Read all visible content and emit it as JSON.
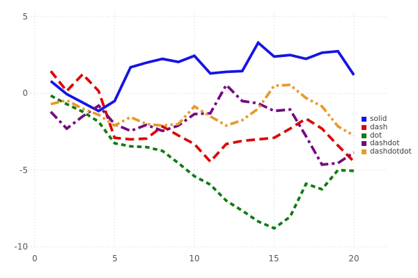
{
  "chart_data": {
    "type": "line",
    "title": "",
    "xlabel": "",
    "ylabel": "",
    "grid": true,
    "grid_style": "dotted",
    "grid_color": "#d9d9e0",
    "background": "#ffffff",
    "tick_label_color": "#55555f",
    "legend_position": "right-middle",
    "xlim": [
      0,
      20.5
    ],
    "ylim": [
      -10,
      5
    ],
    "x_ticks": [
      0,
      5,
      10,
      15,
      20
    ],
    "y_ticks": [
      5,
      0,
      -5,
      -10
    ],
    "x_tick_labels": [
      "0",
      "5",
      "10",
      "15",
      "20"
    ],
    "y_tick_labels": [
      "5",
      "0",
      "-5",
      "-10"
    ],
    "x": [
      1,
      2,
      3,
      4,
      5,
      6,
      7,
      8,
      9,
      10,
      11,
      12,
      13,
      14,
      15,
      16,
      17,
      18,
      19,
      20
    ],
    "series": [
      {
        "name": "solid",
        "dash": "solid",
        "color": "#1414e6",
        "values": [
          0.8,
          -0.05,
          -0.6,
          -1.15,
          -0.5,
          1.7,
          2.0,
          2.25,
          2.05,
          2.45,
          1.3,
          1.4,
          1.45,
          3.3,
          2.4,
          2.5,
          2.25,
          2.65,
          2.75,
          1.2
        ]
      },
      {
        "name": "dash",
        "dash": "dash",
        "color": "#dd0606",
        "values": [
          1.45,
          0.15,
          1.25,
          0.15,
          -2.9,
          -3.0,
          -2.95,
          -2.15,
          -2.75,
          -3.3,
          -4.45,
          -3.3,
          -3.1,
          -3.0,
          -2.9,
          -2.3,
          -1.65,
          -2.3,
          -3.4,
          -4.45
        ]
      },
      {
        "name": "dot",
        "dash": "dot",
        "color": "#117a11",
        "values": [
          -0.15,
          -0.7,
          -1.2,
          -1.85,
          -3.25,
          -3.45,
          -3.5,
          -3.75,
          -4.55,
          -5.4,
          -5.95,
          -7.0,
          -7.65,
          -8.35,
          -8.8,
          -8.05,
          -5.9,
          -6.25,
          -5.0,
          -5.05
        ]
      },
      {
        "name": "dashdot",
        "dash": "dashdot",
        "color": "#750c7e",
        "values": [
          -1.2,
          -2.3,
          -1.5,
          -0.8,
          -2.0,
          -2.45,
          -2.05,
          -2.45,
          -2.1,
          -1.35,
          -1.3,
          0.55,
          -0.5,
          -0.65,
          -1.15,
          -1.05,
          -2.8,
          -4.65,
          -4.55,
          -3.85
        ]
      },
      {
        "name": "dashdotdot",
        "dash": "dashdotdot",
        "color": "#e8992b",
        "values": [
          -0.7,
          -0.45,
          -1.0,
          -1.4,
          -2.1,
          -1.55,
          -2.0,
          -2.1,
          -2.0,
          -0.85,
          -1.5,
          -2.1,
          -1.75,
          -1.0,
          0.5,
          0.55,
          -0.3,
          -0.85,
          -2.15,
          -2.75
        ]
      }
    ]
  },
  "legend": {
    "items": [
      {
        "label": "solid"
      },
      {
        "label": "dash"
      },
      {
        "label": "dot"
      },
      {
        "label": "dashdot"
      },
      {
        "label": "dashdotdot"
      }
    ]
  }
}
